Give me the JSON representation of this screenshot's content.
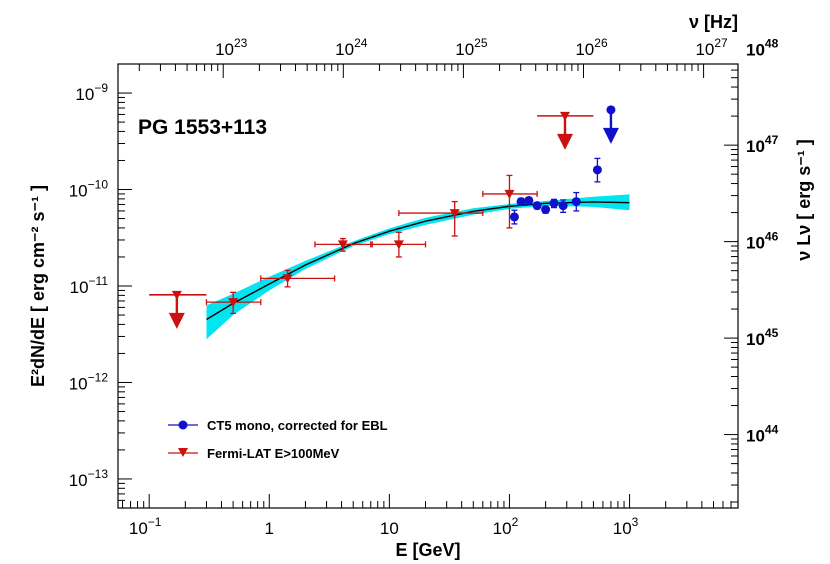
{
  "chart_data": {
    "type": "scatter",
    "title": "PG 1553+113",
    "xlabel": "E [GeV]",
    "ylabel": "E²dN/dE [ erg cm⁻² s⁻¹ ]",
    "x2label": "ν [Hz]",
    "y2label": "ν Lν [ erg s⁻¹ ]",
    "xscale": "log",
    "yscale": "log",
    "xlim": [
      0.055,
      8000
    ],
    "ylim": [
      5e-14,
      2e-09
    ],
    "x_ticks": [
      {
        "base": "10",
        "exp": "−1"
      },
      {
        "base": "1",
        "exp": ""
      },
      {
        "base": "10",
        "exp": ""
      },
      {
        "base": "10",
        "exp": "2"
      },
      {
        "base": "10",
        "exp": "3"
      }
    ],
    "y_ticks": [
      {
        "base": "10",
        "exp": "−13"
      },
      {
        "base": "10",
        "exp": "−12"
      },
      {
        "base": "10",
        "exp": "−11"
      },
      {
        "base": "10",
        "exp": "−10"
      },
      {
        "base": "10",
        "exp": "−9"
      }
    ],
    "top_ticks": [
      {
        "base": "10",
        "exp": "23"
      },
      {
        "base": "10",
        "exp": "24"
      },
      {
        "base": "10",
        "exp": "25"
      },
      {
        "base": "10",
        "exp": "26"
      },
      {
        "base": "10",
        "exp": "27"
      }
    ],
    "right_ticks": [
      {
        "base": "10",
        "exp": "44"
      },
      {
        "base": "10",
        "exp": "45"
      },
      {
        "base": "10",
        "exp": "46"
      },
      {
        "base": "10",
        "exp": "47"
      },
      {
        "base": "10",
        "exp": "48"
      }
    ],
    "legend_position": "bottom-left",
    "series": [
      {
        "name": "CT5 mono, corrected for EBL",
        "color": "#1010cc",
        "marker": "circle",
        "points": [
          {
            "x": 110,
            "y": 5.2e-11,
            "ylo": 4.4e-11,
            "yhi": 6.1e-11
          },
          {
            "x": 125,
            "y": 7.5e-11,
            "ylo": 6.9e-11,
            "yhi": 8.1e-11
          },
          {
            "x": 145,
            "y": 7.7e-11,
            "ylo": 7.2e-11,
            "yhi": 8.2e-11
          },
          {
            "x": 170,
            "y": 6.8e-11,
            "ylo": 6.3e-11,
            "yhi": 7.3e-11
          },
          {
            "x": 200,
            "y": 6.2e-11,
            "ylo": 5.7e-11,
            "yhi": 6.7e-11
          },
          {
            "x": 235,
            "y": 7.2e-11,
            "ylo": 6.5e-11,
            "yhi": 7.9e-11
          },
          {
            "x": 280,
            "y": 6.8e-11,
            "ylo": 5.8e-11,
            "yhi": 7.8e-11
          },
          {
            "x": 360,
            "y": 7.5e-11,
            "ylo": 6e-11,
            "yhi": 9.3e-11
          },
          {
            "x": 540,
            "y": 1.6e-10,
            "ylo": 1.2e-10,
            "yhi": 2.1e-10
          }
        ],
        "upper_limits": [
          {
            "x": 700,
            "y": 6.7e-10
          }
        ]
      },
      {
        "name": "Fermi-LAT E>100MeV",
        "color": "#cc1010",
        "marker": "triangle-down",
        "points": [
          {
            "x": 0.5,
            "y": 6.8e-12,
            "xlo": 0.3,
            "xhi": 0.85,
            "ylo": 5.2e-12,
            "yhi": 8.6e-12
          },
          {
            "x": 1.42,
            "y": 1.2e-11,
            "xlo": 0.85,
            "xhi": 3.5,
            "ylo": 9.8e-12,
            "yhi": 1.45e-11
          },
          {
            "x": 4.1,
            "y": 2.7e-11,
            "xlo": 2.4,
            "xhi": 7.2,
            "ylo": 2.3e-11,
            "yhi": 3.1e-11
          },
          {
            "x": 12,
            "y": 2.7e-11,
            "xlo": 7.0,
            "xhi": 20,
            "ylo": 2e-11,
            "yhi": 3.6e-11
          },
          {
            "x": 35,
            "y": 5.7e-11,
            "xlo": 12,
            "xhi": 60,
            "ylo": 3.3e-11,
            "yhi": 7.5e-11
          },
          {
            "x": 100,
            "y": 9e-11,
            "xlo": 60,
            "xhi": 170,
            "ylo": 4e-11,
            "yhi": 1.4e-10
          }
        ],
        "upper_limits": [
          {
            "x": 0.17,
            "y": 8.1e-12,
            "xlo": 0.1,
            "xhi": 0.3
          },
          {
            "x": 290,
            "y": 5.8e-10,
            "xlo": 170,
            "xhi": 500
          }
        ]
      }
    ],
    "model": {
      "color": "#000000",
      "band_color": "#00e5f0",
      "points": [
        {
          "x": 0.3,
          "y": 4.5e-12,
          "lo": 2.8e-12,
          "hi": 6.3e-12
        },
        {
          "x": 0.5,
          "y": 6.6e-12,
          "lo": 5e-12,
          "hi": 8.3e-12
        },
        {
          "x": 1,
          "y": 1.05e-11,
          "lo": 9e-12,
          "hi": 1.25e-11
        },
        {
          "x": 2,
          "y": 1.65e-11,
          "lo": 1.5e-11,
          "hi": 1.82e-11
        },
        {
          "x": 5,
          "y": 2.75e-11,
          "lo": 2.6e-11,
          "hi": 2.9e-11
        },
        {
          "x": 10,
          "y": 3.7e-11,
          "lo": 3.45e-11,
          "hi": 3.95e-11
        },
        {
          "x": 20,
          "y": 4.7e-11,
          "lo": 4.3e-11,
          "hi": 5.1e-11
        },
        {
          "x": 50,
          "y": 5.95e-11,
          "lo": 5.5e-11,
          "hi": 6.4e-11
        },
        {
          "x": 100,
          "y": 6.7e-11,
          "lo": 6.3e-11,
          "hi": 7.1e-11
        },
        {
          "x": 200,
          "y": 7.2e-11,
          "lo": 6.8e-11,
          "hi": 7.6e-11
        },
        {
          "x": 500,
          "y": 7.45e-11,
          "lo": 6.6e-11,
          "hi": 8.4e-11
        },
        {
          "x": 1000,
          "y": 7.3e-11,
          "lo": 6.1e-11,
          "hi": 8.9e-11
        }
      ]
    }
  }
}
